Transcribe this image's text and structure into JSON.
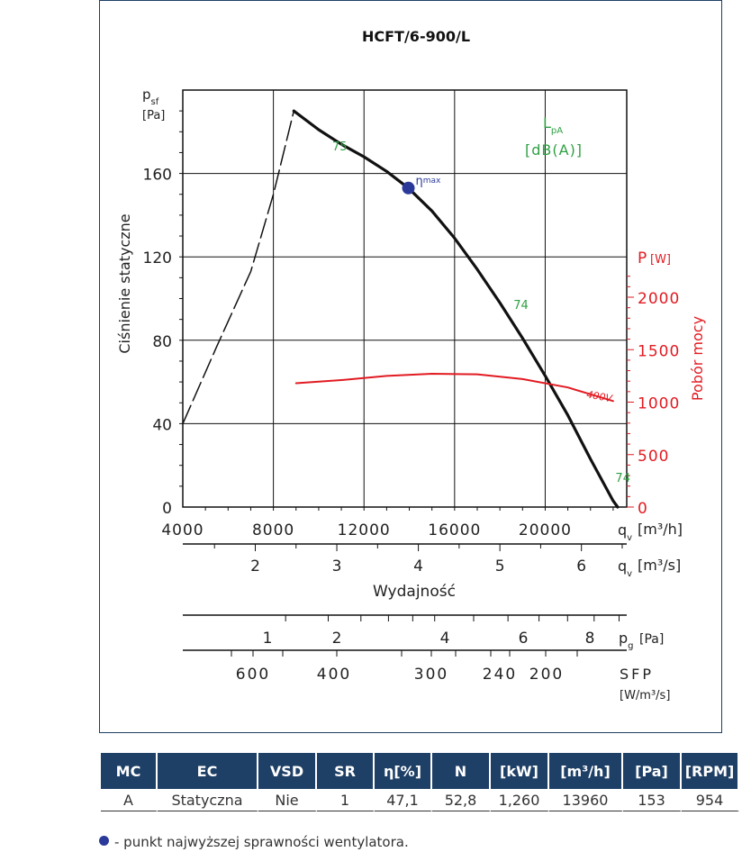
{
  "chart_data": {
    "type": "line",
    "title": "HCFT/6-900/L",
    "x_axis": {
      "label": "Wydajność",
      "unit_label": "[m³/h]",
      "symbol": "q",
      "sub": "v",
      "ticks": [
        4000,
        8000,
        12000,
        16000,
        20000
      ],
      "range": [
        4000,
        23600
      ]
    },
    "x2_axis": {
      "symbol": "q",
      "sub": "v",
      "unit_label": "[m³/s]",
      "ticks": [
        2,
        3,
        4,
        5,
        6
      ]
    },
    "y_axis": {
      "label": "Ciśnienie statyczne",
      "symbol": "p",
      "sub": "sf",
      "unit_label": "[Pa]",
      "ticks": [
        0,
        40,
        80,
        120,
        160
      ],
      "range": [
        0,
        200
      ]
    },
    "y2_axis": {
      "label": "Pobór mocy",
      "symbol": "P",
      "unit_label": "[W]",
      "ticks": [
        0,
        500,
        1000,
        1500,
        2000
      ],
      "range": [
        0,
        2000
      ]
    },
    "noise_label": {
      "symbol": "L",
      "sub": "pA",
      "unit_label": "[dB(A)]"
    },
    "series": [
      {
        "name": "pressure-unstable",
        "style": "dashed",
        "color": "#111111",
        "points": [
          [
            4000,
            40
          ],
          [
            5500,
            77
          ],
          [
            7000,
            113
          ],
          [
            8000,
            150
          ],
          [
            8900,
            190
          ]
        ]
      },
      {
        "name": "pressure",
        "style": "solid",
        "color": "#111111",
        "points": [
          [
            8900,
            190
          ],
          [
            10000,
            181
          ],
          [
            11000,
            174
          ],
          [
            12000,
            168
          ],
          [
            13000,
            161
          ],
          [
            13960,
            153
          ],
          [
            15000,
            142
          ],
          [
            16000,
            129
          ],
          [
            17000,
            114
          ],
          [
            18000,
            98
          ],
          [
            19000,
            81
          ],
          [
            20000,
            63
          ],
          [
            21000,
            44
          ],
          [
            22000,
            23
          ],
          [
            23000,
            3
          ],
          [
            23200,
            0
          ]
        ]
      },
      {
        "name": "400V",
        "axis": "y2",
        "color": "#e11b22",
        "points": [
          [
            9000,
            1180
          ],
          [
            11000,
            1210
          ],
          [
            13000,
            1250
          ],
          [
            15000,
            1270
          ],
          [
            17000,
            1265
          ],
          [
            19000,
            1220
          ],
          [
            21000,
            1140
          ],
          [
            23000,
            1010
          ]
        ]
      }
    ],
    "noise_labels": [
      {
        "x": 10600,
        "y": 171,
        "text": "75"
      },
      {
        "x": 18600,
        "y": 95,
        "text": "74"
      },
      {
        "x": 23100,
        "y": 12,
        "text": "74"
      }
    ],
    "eta_max": {
      "x": 13960,
      "y": 153,
      "label": "η",
      "sub": "max"
    },
    "pg_scale": {
      "symbol": "p",
      "sub": "g",
      "unit_label": "[Pa]",
      "ticks": [
        "1",
        "2",
        "4",
        "6",
        "8"
      ]
    },
    "sfp_scale": {
      "label": "SFP",
      "unit_label": "[W/m³/s]",
      "ticks": [
        "600",
        "400",
        "300",
        "240",
        "200"
      ]
    },
    "colors": {
      "curve": "#111111",
      "power": "#e11b22",
      "noise": "#2ea043",
      "eta": "#2b3a9a",
      "frame": "#1e3f66"
    }
  },
  "table": {
    "headers": [
      "MC",
      "EC",
      "VSD",
      "SR",
      "η[%]",
      "N",
      "[kW]",
      "[m³/h]",
      "[Pa]",
      "[RPM]"
    ],
    "rows": [
      [
        "A",
        "Statyczna",
        "Nie",
        "1",
        "47,1",
        "52,8",
        "1,260",
        "13960",
        "153",
        "954"
      ]
    ]
  },
  "note": "- punkt najwyższej sprawności wentylatora."
}
